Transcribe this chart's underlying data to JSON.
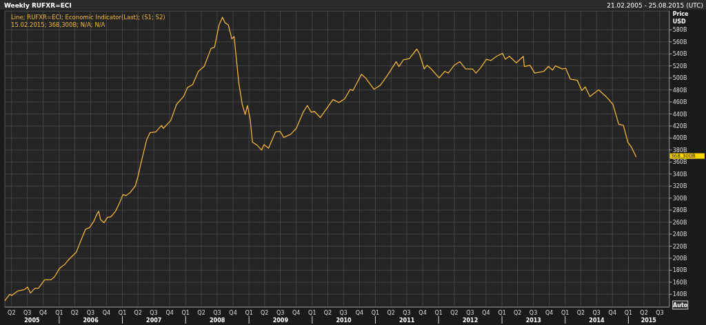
{
  "chart_data": {
    "type": "line",
    "title": "Weekly RUFXR=ECI",
    "subtitle": "21.02.2005 - 25.08.2015 (UTC)",
    "ylabel": "Price\nUSD",
    "annotations": [
      "Line; RUFXR=ECI; Economic Indicator(Last); (S1; S2)",
      "15.02.2015; 368,300B; N/A; N/A",
      "368,300B",
      "Auto"
    ],
    "xlim": [
      "2005-02-21",
      "2015-08-25"
    ],
    "xticks": [
      {
        "value": "2005-04-01",
        "label": "Q2"
      },
      {
        "value": "2005-07-01",
        "label": "Q3"
      },
      {
        "value": "2005-10-01",
        "label": "Q4"
      },
      {
        "value": "2006-01-01",
        "label": "Q1"
      },
      {
        "value": "2006-04-01",
        "label": "Q2"
      },
      {
        "value": "2006-07-01",
        "label": "Q3"
      },
      {
        "value": "2006-10-01",
        "label": "Q4"
      },
      {
        "value": "2007-01-01",
        "label": "Q1"
      },
      {
        "value": "2007-04-01",
        "label": "Q2"
      },
      {
        "value": "2007-07-01",
        "label": "Q3"
      },
      {
        "value": "2007-10-01",
        "label": "Q4"
      },
      {
        "value": "2008-01-01",
        "label": "Q1"
      },
      {
        "value": "2008-04-01",
        "label": "Q2"
      },
      {
        "value": "2008-07-01",
        "label": "Q3"
      },
      {
        "value": "2008-10-01",
        "label": "Q4"
      },
      {
        "value": "2009-01-01",
        "label": "Q1"
      },
      {
        "value": "2009-04-01",
        "label": "Q2"
      },
      {
        "value": "2009-07-01",
        "label": "Q3"
      },
      {
        "value": "2009-10-01",
        "label": "Q4"
      },
      {
        "value": "2010-01-01",
        "label": "Q1"
      },
      {
        "value": "2010-04-01",
        "label": "Q2"
      },
      {
        "value": "2010-07-01",
        "label": "Q3"
      },
      {
        "value": "2010-10-01",
        "label": "Q4"
      },
      {
        "value": "2011-01-01",
        "label": "Q1"
      },
      {
        "value": "2011-04-01",
        "label": "Q2"
      },
      {
        "value": "2011-07-01",
        "label": "Q3"
      },
      {
        "value": "2011-10-01",
        "label": "Q4"
      },
      {
        "value": "2012-01-01",
        "label": "Q1"
      },
      {
        "value": "2012-04-01",
        "label": "Q2"
      },
      {
        "value": "2012-07-01",
        "label": "Q3"
      },
      {
        "value": "2012-10-01",
        "label": "Q4"
      },
      {
        "value": "2013-01-01",
        "label": "Q1"
      },
      {
        "value": "2013-04-01",
        "label": "Q2"
      },
      {
        "value": "2013-07-01",
        "label": "Q3"
      },
      {
        "value": "2013-10-01",
        "label": "Q4"
      },
      {
        "value": "2014-01-01",
        "label": "Q1"
      },
      {
        "value": "2014-04-01",
        "label": "Q2"
      },
      {
        "value": "2014-07-01",
        "label": "Q3"
      },
      {
        "value": "2014-10-01",
        "label": "Q4"
      },
      {
        "value": "2015-01-01",
        "label": "Q1"
      },
      {
        "value": "2015-04-01",
        "label": "Q2"
      },
      {
        "value": "2015-07-01",
        "label": "Q3"
      }
    ],
    "x2lim": [
      "2005-02-21",
      "2015-08-25"
    ],
    "x2ticks": [
      {
        "value": "2005-07-28",
        "label": "2005"
      },
      {
        "value": "2006-01-01",
        "label": null
      },
      {
        "value": "2006-07-02",
        "label": "2006"
      },
      {
        "value": "2007-01-01",
        "label": null
      },
      {
        "value": "2007-07-02",
        "label": "2007"
      },
      {
        "value": "2008-01-01",
        "label": null
      },
      {
        "value": "2008-07-02",
        "label": "2008"
      },
      {
        "value": "2009-01-01",
        "label": null
      },
      {
        "value": "2009-07-02",
        "label": "2009"
      },
      {
        "value": "2010-01-01",
        "label": null
      },
      {
        "value": "2010-07-02",
        "label": "2010"
      },
      {
        "value": "2011-01-01",
        "label": null
      },
      {
        "value": "2011-07-02",
        "label": "2011"
      },
      {
        "value": "2012-01-01",
        "label": null
      },
      {
        "value": "2012-07-02",
        "label": "2012"
      },
      {
        "value": "2013-01-01",
        "label": null
      },
      {
        "value": "2013-07-02",
        "label": "2013"
      },
      {
        "value": "2014-01-01",
        "label": null
      },
      {
        "value": "2014-07-02",
        "label": "2014"
      },
      {
        "value": "2015-01-01",
        "label": null
      },
      {
        "value": "2015-04-28",
        "label": "2015"
      }
    ],
    "ylim": [
      118.6,
      611.3
    ],
    "yticks": [
      {
        "value": 140,
        "label": "140B"
      },
      {
        "value": 160,
        "label": "160B"
      },
      {
        "value": 180,
        "label": "180B"
      },
      {
        "value": 200,
        "label": "200B"
      },
      {
        "value": 220,
        "label": "220B"
      },
      {
        "value": 240,
        "label": "240B"
      },
      {
        "value": 260,
        "label": "260B"
      },
      {
        "value": 280,
        "label": "280B"
      },
      {
        "value": 300,
        "label": "300B"
      },
      {
        "value": 320,
        "label": "320B"
      },
      {
        "value": 340,
        "label": "340B"
      },
      {
        "value": 360,
        "label": "360B"
      },
      {
        "value": 380,
        "label": "380B"
      },
      {
        "value": 400,
        "label": "400B"
      },
      {
        "value": 420,
        "label": "420B"
      },
      {
        "value": 440,
        "label": "440B"
      },
      {
        "value": 460,
        "label": "460B"
      },
      {
        "value": 480,
        "label": "480B"
      },
      {
        "value": 500,
        "label": "500B"
      },
      {
        "value": 520,
        "label": "520B"
      },
      {
        "value": 540,
        "label": "540B"
      },
      {
        "value": 560,
        "label": "560B"
      },
      {
        "value": 580,
        "label": "580B"
      }
    ],
    "grid": true,
    "series": [
      {
        "color": "#f2b53a",
        "x": [
          "2005-02-21",
          "2005-03-21",
          "2005-04-03",
          "2005-05-04",
          "2005-06-16",
          "2005-07-02",
          "2005-07-19",
          "2005-08-14",
          "2005-09-03",
          "2005-10-09",
          "2005-11-15",
          "2005-12-05",
          "2006-01-03",
          "2006-02-03",
          "2006-02-23",
          "2006-03-19",
          "2006-04-10",
          "2006-04-30",
          "2006-06-02",
          "2006-06-26",
          "2006-07-19",
          "2006-08-08",
          "2006-08-17",
          "2006-08-28",
          "2006-09-17",
          "2006-10-07",
          "2006-10-27",
          "2006-11-22",
          "2006-12-12",
          "2007-01-05",
          "2007-01-21",
          "2007-02-14",
          "2007-03-16",
          "2007-04-01",
          "2007-04-18",
          "2007-05-21",
          "2007-06-10",
          "2007-07-13",
          "2007-08-15",
          "2007-08-25",
          "2007-10-07",
          "2007-11-10",
          "2007-12-20",
          "2008-01-12",
          "2008-02-11",
          "2008-03-15",
          "2008-04-17",
          "2008-05-27",
          "2008-06-16",
          "2008-07-12",
          "2008-08-01",
          "2008-08-15",
          "2008-09-04",
          "2008-09-24",
          "2008-10-07",
          "2008-11-03",
          "2008-11-23",
          "2008-12-10",
          "2008-12-23",
          "2009-01-08",
          "2009-01-21",
          "2009-02-17",
          "2009-03-15",
          "2009-03-29",
          "2009-04-24",
          "2009-06-03",
          "2009-06-30",
          "2009-07-20",
          "2009-08-29",
          "2009-10-01",
          "2009-11-10",
          "2009-12-04",
          "2009-12-26",
          "2010-01-15",
          "2010-02-17",
          "2010-03-23",
          "2010-05-01",
          "2010-06-04",
          "2010-07-07",
          "2010-08-09",
          "2010-08-24",
          "2010-10-13",
          "2010-11-05",
          "2010-12-24",
          "2011-01-30",
          "2011-03-11",
          "2011-05-01",
          "2011-05-17",
          "2011-06-12",
          "2011-07-16",
          "2011-08-28",
          "2011-09-13",
          "2011-10-10",
          "2011-10-26",
          "2011-11-19",
          "2012-01-04",
          "2012-02-06",
          "2012-02-26",
          "2012-03-31",
          "2012-05-03",
          "2012-06-05",
          "2012-07-15",
          "2012-08-04",
          "2012-08-31",
          "2012-10-03",
          "2012-10-29",
          "2012-12-01",
          "2013-01-04",
          "2013-01-20",
          "2013-02-13",
          "2013-03-25",
          "2013-05-04",
          "2013-05-10",
          "2013-06-12",
          "2013-07-09",
          "2013-08-31",
          "2013-09-26",
          "2013-10-20",
          "2013-11-05",
          "2013-12-15",
          "2014-01-04",
          "2014-01-31",
          "2014-03-12",
          "2014-04-07",
          "2014-04-27",
          "2014-05-24",
          "2014-06-19",
          "2014-07-13",
          "2014-08-25",
          "2014-10-04",
          "2014-11-06",
          "2014-12-03",
          "2014-12-29",
          "2015-01-18",
          "2015-02-15"
        ],
        "values": [
          129,
          140,
          138,
          145,
          148,
          152,
          142,
          150,
          150,
          164,
          164,
          169,
          183,
          190,
          197,
          204,
          210,
          225,
          248,
          251,
          261,
          274,
          278,
          264,
          259,
          268,
          269,
          278,
          290,
          306,
          304,
          309,
          320,
          336,
          358,
          397,
          409,
          410,
          421,
          416,
          429,
          456,
          469,
          484,
          489,
          511,
          519,
          549,
          551,
          588,
          601,
          592,
          588,
          565,
          569,
          492,
          456,
          439,
          454,
          431,
          393,
          388,
          380,
          389,
          383,
          410,
          411,
          401,
          406,
          416,
          443,
          454,
          443,
          444,
          434,
          448,
          464,
          459,
          465,
          481,
          479,
          506,
          500,
          481,
          488,
          504,
          527,
          519,
          530,
          532,
          548,
          540,
          515,
          521,
          515,
          500,
          511,
          508,
          521,
          527,
          515,
          515,
          508,
          517,
          531,
          529,
          536,
          541,
          531,
          536,
          525,
          536,
          519,
          521,
          508,
          511,
          519,
          513,
          520,
          515,
          516,
          498,
          496,
          479,
          485,
          469,
          475,
          480,
          469,
          456,
          423,
          421,
          393,
          385,
          368.3
        ]
      }
    ]
  }
}
